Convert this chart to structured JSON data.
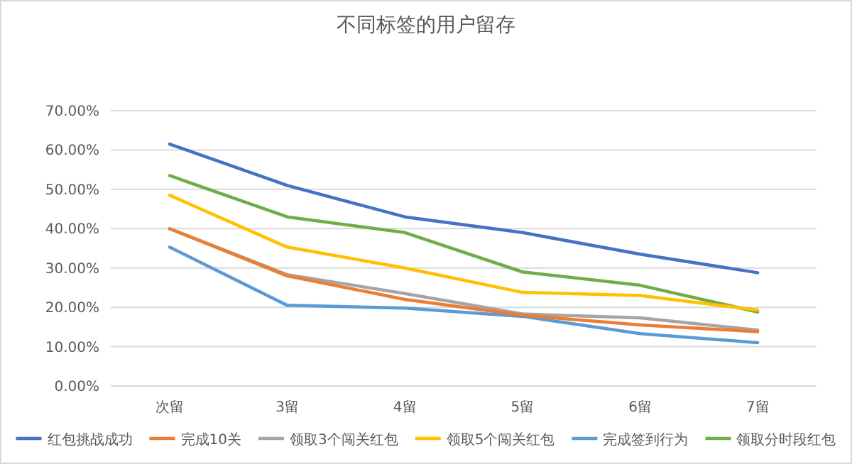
{
  "chart_data": {
    "type": "line",
    "title": "不同标签的用户留存",
    "categories": [
      "次留",
      "3留",
      "4留",
      "5留",
      "6留",
      "7留"
    ],
    "series": [
      {
        "name": "红包挑战成功",
        "color": "#4472c4",
        "values": [
          61.5,
          51,
          43,
          39,
          33.5,
          28.8
        ]
      },
      {
        "name": "完成10关",
        "color": "#ed7d31",
        "values": [
          40,
          28,
          22,
          18,
          15.5,
          13.8
        ]
      },
      {
        "name": "领取3个闯关红包",
        "color": "#a5a5a5",
        "values": [
          40,
          28.3,
          23.5,
          18.3,
          17.3,
          14.2
        ]
      },
      {
        "name": "领取5个闯关红包",
        "color": "#ffc000",
        "values": [
          48.5,
          35.3,
          30,
          23.8,
          23,
          19.3
        ]
      },
      {
        "name": "完成签到行为",
        "color": "#5b9bd5",
        "values": [
          35.3,
          20.5,
          19.8,
          17.7,
          13.3,
          11
        ]
      },
      {
        "name": "领取分时段红包",
        "color": "#70ad47",
        "values": [
          53.5,
          43,
          39,
          29,
          25.6,
          18.8
        ]
      }
    ],
    "ylim": [
      0,
      70
    ],
    "yticks": [
      {
        "value": 0,
        "label": "0.00%"
      },
      {
        "value": 10,
        "label": "10.00%"
      },
      {
        "value": 20,
        "label": "20.00%"
      },
      {
        "value": 30,
        "label": "30.00%"
      },
      {
        "value": 40,
        "label": "40.00%"
      },
      {
        "value": 50,
        "label": "50.00%"
      },
      {
        "value": 60,
        "label": "60.00%"
      },
      {
        "value": 70,
        "label": "70.00%"
      }
    ],
    "grid": "y",
    "legend": "bottom",
    "marker": "none",
    "line_style": "solid"
  }
}
